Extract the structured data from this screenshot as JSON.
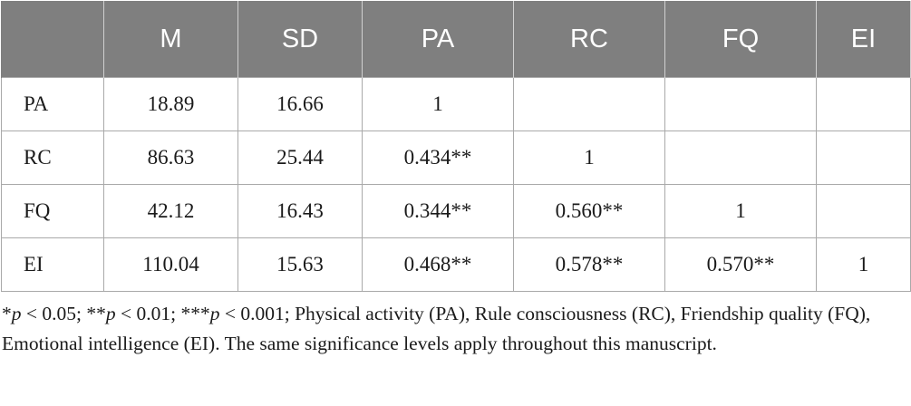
{
  "table": {
    "headers": [
      "",
      "M",
      "SD",
      "PA",
      "RC",
      "FQ",
      "EI"
    ],
    "rows": [
      {
        "label": "PA",
        "cells": [
          "18.89",
          "16.66",
          "1",
          "",
          "",
          ""
        ]
      },
      {
        "label": "RC",
        "cells": [
          "86.63",
          "25.44",
          "0.434**",
          "1",
          "",
          ""
        ]
      },
      {
        "label": "FQ",
        "cells": [
          "42.12",
          "16.43",
          "0.344**",
          "0.560**",
          "1",
          ""
        ]
      },
      {
        "label": "EI",
        "cells": [
          "110.04",
          "15.63",
          "0.468**",
          "0.578**",
          "0.570**",
          "1"
        ]
      }
    ]
  },
  "footnote": {
    "sig1_mark": "*",
    "sig1_var": "p",
    "sig1_rest": " < 0.05; ",
    "sig2_mark": "**",
    "sig2_var": "p",
    "sig2_rest": " < 0.01; ",
    "sig3_mark": "***",
    "sig3_var": "p",
    "sig3_rest": " < 0.001; ",
    "text": "Physical activity (PA), Rule consciousness (RC), Friendship quality (FQ), Emotional intelligence (EI). The same significance levels apply throughout this manuscript."
  }
}
